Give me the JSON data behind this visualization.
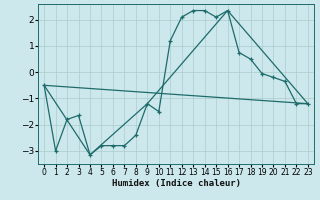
{
  "xlabel": "Humidex (Indice chaleur)",
  "bg_color": "#cce8ec",
  "grid_color": "#aacccc",
  "line_color": "#1e6b6b",
  "ylim": [
    -3.5,
    2.6
  ],
  "xlim": [
    -0.5,
    23.5
  ],
  "yticks": [
    -3,
    -2,
    -1,
    0,
    1,
    2
  ],
  "xticks": [
    0,
    1,
    2,
    3,
    4,
    5,
    6,
    7,
    8,
    9,
    10,
    11,
    12,
    13,
    14,
    15,
    16,
    17,
    18,
    19,
    20,
    21,
    22,
    23
  ],
  "line1_x": [
    0,
    1,
    2,
    3,
    4,
    5,
    6,
    7,
    8,
    9,
    10,
    11,
    12,
    13,
    14,
    15,
    16,
    17,
    18,
    19,
    20,
    21,
    22,
    23
  ],
  "line1_y": [
    -0.5,
    -3.0,
    -1.8,
    -1.65,
    -3.15,
    -2.8,
    -2.8,
    -2.8,
    -2.4,
    -1.2,
    -1.5,
    1.2,
    2.1,
    2.35,
    2.35,
    2.1,
    2.35,
    0.75,
    0.5,
    -0.05,
    -0.2,
    -0.35,
    -1.2,
    -1.2
  ],
  "line2_x": [
    0,
    4,
    9,
    16,
    23
  ],
  "line2_y": [
    -0.5,
    -3.15,
    -1.2,
    2.35,
    -1.2
  ],
  "line3_x": [
    0,
    23
  ],
  "line3_y": [
    -0.5,
    -1.2
  ]
}
